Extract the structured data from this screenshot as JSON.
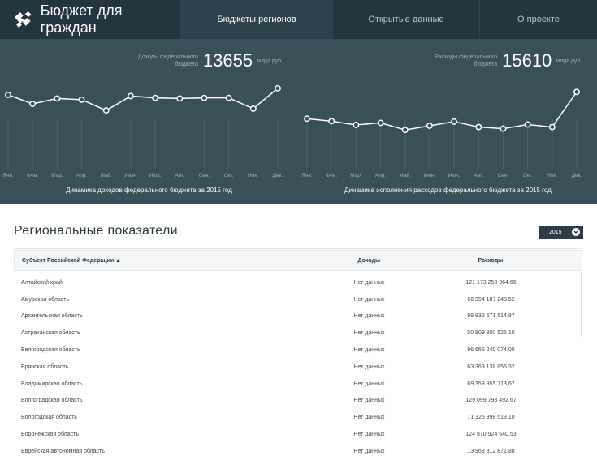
{
  "app": {
    "title": "Бюджет для граждан",
    "nav": [
      "Бюджеты регионов",
      "Открытые данные",
      "О проекте"
    ],
    "active_nav": "Бюджеты регионов"
  },
  "colors": {
    "topbar": "#233640",
    "hero": "#385058",
    "accent": "#ffffff"
  },
  "kpis": {
    "income": {
      "label_line1": "Доходы федерального",
      "label_line2": "бюджета",
      "value": "13655",
      "unit": "млрд.руб."
    },
    "expense": {
      "label_line1": "Расходы федерального",
      "label_line2": "бюджета",
      "value": "15610",
      "unit": "млрд.руб."
    }
  },
  "chart_data": [
    {
      "type": "line",
      "title": "Динамика доходов федерального бюджета за 2015 год",
      "categories": [
        "Янв.",
        "Фев.",
        "Мар.",
        "Апр.",
        "Май.",
        "Июн.",
        "Июл.",
        "Авг.",
        "Сен.",
        "Окт.",
        "Ноя.",
        "Дек."
      ],
      "values": [
        1210,
        1060,
        1150,
        1130,
        950,
        1190,
        1160,
        1150,
        1160,
        1160,
        980,
        1320
      ],
      "ylim": [
        0,
        1400
      ],
      "grid": "vertical"
    },
    {
      "type": "line",
      "title": "Динамика исполнения расходов федерального бюджета за 2015 год",
      "categories": [
        "Янв.",
        "Фев.",
        "Мар.",
        "Апр.",
        "Май.",
        "Июн.",
        "Июл.",
        "Авг.",
        "Сен.",
        "Окт.",
        "Ноя.",
        "Дек."
      ],
      "values": [
        1160,
        1100,
        1010,
        1060,
        890,
        990,
        1090,
        960,
        920,
        1020,
        960,
        1800
      ],
      "ylim": [
        0,
        2000
      ],
      "grid": "vertical"
    }
  ],
  "section": {
    "title": "Региональные показатели",
    "year": "2015",
    "columns": [
      "Субъект Российской Федерации ▲",
      "Доходы",
      "Расходы"
    ],
    "rows": [
      [
        "Алтайский край",
        "Нет данных",
        "121 173 250 364.66"
      ],
      [
        "Амурская область",
        "Нет данных",
        "66 954 187 248.52"
      ],
      [
        "Архангельская область",
        "Нет данных",
        "99 832 571 514.87"
      ],
      [
        "Астраханская область",
        "Нет данных",
        "50 809 300 525.10"
      ],
      [
        "Белгородская область",
        "Нет данных",
        "96 665 240 074.05"
      ],
      [
        "Брянская область",
        "Нет данных",
        "63 363 138 856.32"
      ],
      [
        "Владимирская область",
        "Нет данных",
        "69 358 955 713.67"
      ],
      [
        "Волгоградская область",
        "Нет данных",
        "129 099 793 492.67"
      ],
      [
        "Вологодская область",
        "Нет данных",
        "71 325 998 513.10"
      ],
      [
        "Воронежская область",
        "Нет данных",
        "124 870 924 640.53"
      ],
      [
        "Еврейская автономная область",
        "Нет данных",
        "13 963 812 871.88"
      ]
    ]
  }
}
